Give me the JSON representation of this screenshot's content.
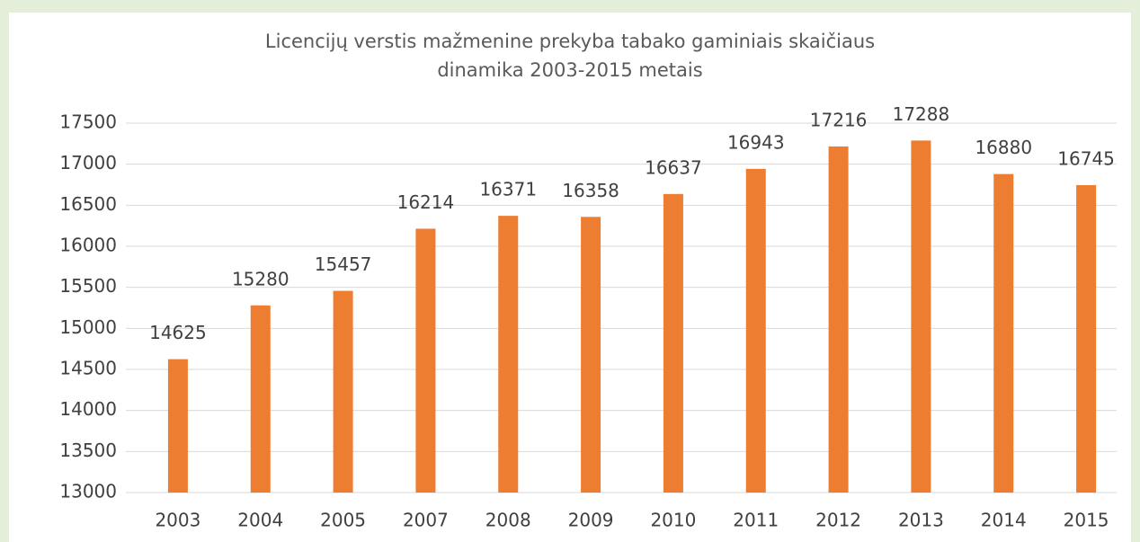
{
  "chart_data": {
    "type": "bar",
    "title": "Licencijų verstis mažmenine prekyba tabako gaminiais skaičiaus\ndinamika 2003-2015 metais",
    "categories": [
      "2003",
      "2004",
      "2005",
      "2007",
      "2008",
      "2009",
      "2010",
      "2011",
      "2012",
      "2013",
      "2014",
      "2015"
    ],
    "values": [
      14625,
      15280,
      15457,
      16214,
      16371,
      16358,
      16637,
      16943,
      17216,
      17288,
      16880,
      16745
    ],
    "color": "#ed7d31",
    "ylim": [
      13000,
      17500
    ],
    "yticks": [
      13000,
      13500,
      14000,
      14500,
      15000,
      15500,
      16000,
      16500,
      17000,
      17500
    ],
    "grid": true
  }
}
